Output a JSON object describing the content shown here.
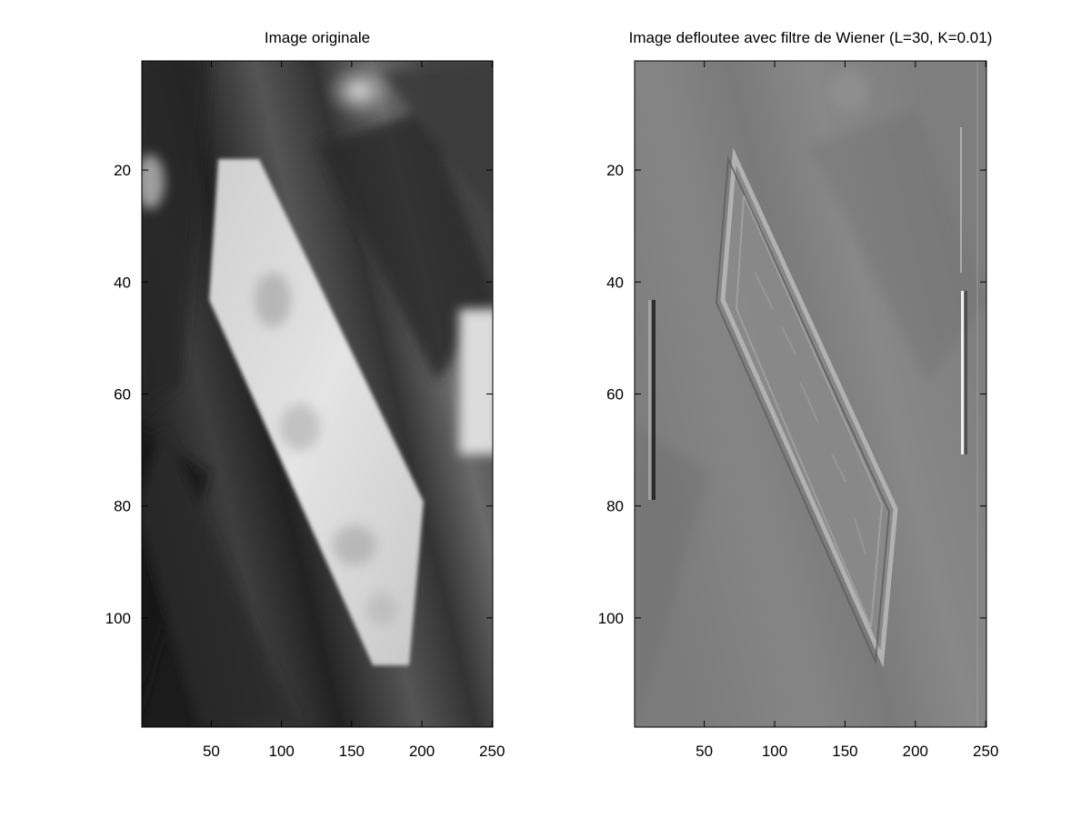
{
  "chart_data": [
    {
      "type": "heatmap",
      "title": "Image originale",
      "xlabel": "",
      "ylabel": "",
      "xlim": [
        0.5,
        250.5
      ],
      "ylim": [
        0.5,
        119.5
      ],
      "x_ticks": [
        50,
        100,
        150,
        200,
        250
      ],
      "y_ticks": [
        20,
        40,
        60,
        80,
        100
      ],
      "y_reversed": true,
      "colormap": "gray",
      "content": "blurred grayscale photograph of a bright rhombus-shaped object on a dark streaked background"
    },
    {
      "type": "heatmap",
      "title": "Image defloutee avec filtre de Wiener (L=30, K=0.01)",
      "xlabel": "",
      "ylabel": "",
      "xlim": [
        0.5,
        250.5
      ],
      "ylim": [
        0.5,
        119.5
      ],
      "x_ticks": [
        50,
        100,
        150,
        200,
        250
      ],
      "y_ticks": [
        20,
        40,
        60,
        80,
        100
      ],
      "y_reversed": true,
      "colormap": "gray",
      "content": "Wiener-deblurred grayscale image with mid-gray background and edge-enhanced rhombus outline"
    }
  ],
  "colors": {
    "background": "#ffffff",
    "axes": "#000000"
  }
}
